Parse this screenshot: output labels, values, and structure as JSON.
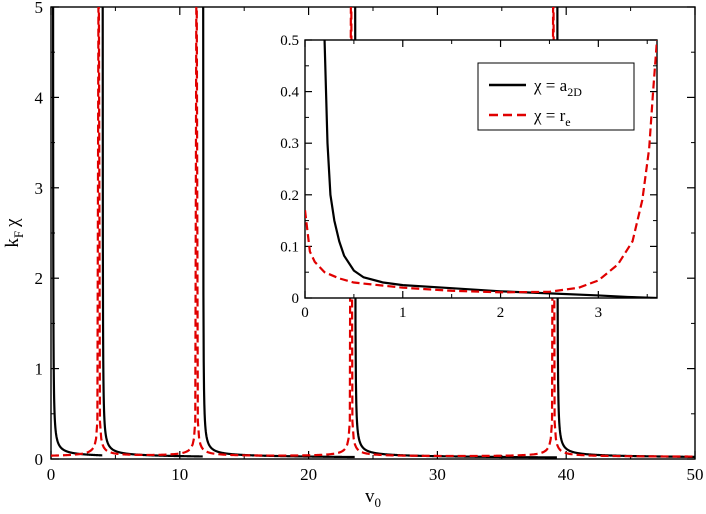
{
  "chart_data": [
    {
      "type": "line",
      "xlabel": "v0",
      "xlabel_main": "v",
      "xlabel_sub": "0",
      "ylabel": "kF χ",
      "ylabel_k": "k",
      "ylabel_sub": "F",
      "ylabel_chi": "χ",
      "xlim": [
        0,
        50
      ],
      "ylim": [
        0,
        5
      ],
      "x_ticks": [
        0,
        10,
        20,
        30,
        40,
        50
      ],
      "y_ticks": [
        0,
        1,
        2,
        3,
        4,
        5
      ],
      "grid": false,
      "series": [
        {
          "name": "χ = a2D",
          "color": "#000000",
          "dash": "solid",
          "resonances": [
            0.15,
            4.0,
            11.8,
            23.6,
            39.3
          ],
          "tail": 0.03
        },
        {
          "name": "χ = re",
          "color": "#e00000",
          "dash": "dashed",
          "resonances": [
            3.7,
            11.3,
            23.3,
            39.0
          ],
          "tail": 0.02
        }
      ]
    },
    {
      "type": "line",
      "location": "inset",
      "xlim": [
        0,
        3.6
      ],
      "ylim": [
        0,
        0.5
      ],
      "x_ticks": [
        0,
        1,
        2,
        3
      ],
      "y_ticks": [
        0,
        0.1,
        0.2,
        0.3,
        0.4,
        0.5
      ],
      "y_tick_labels": [
        "0",
        "0.1",
        "0.2",
        "0.3",
        "0.4",
        "0.5"
      ],
      "legend_position": "top-right",
      "legend": [
        {
          "lhs": "χ = a",
          "sub": "2D",
          "color": "#000000",
          "dash": "solid"
        },
        {
          "lhs": "χ = r",
          "sub": "e",
          "color": "#e00000",
          "dash": "dashed"
        }
      ],
      "series": [
        {
          "name": "χ = a2D",
          "color": "#000000",
          "x": [
            0.2,
            0.23,
            0.26,
            0.3,
            0.35,
            0.4,
            0.5,
            0.6,
            0.8,
            1.0,
            1.5,
            2.0,
            2.5,
            3.0,
            3.3,
            3.6
          ],
          "y": [
            0.5,
            0.3,
            0.2,
            0.15,
            0.11,
            0.082,
            0.053,
            0.04,
            0.03,
            0.025,
            0.019,
            0.013,
            0.009,
            0.005,
            0.002,
            0.0
          ]
        },
        {
          "name": "χ = re",
          "color": "#e00000",
          "x": [
            0.0,
            0.05,
            0.1,
            0.2,
            0.35,
            0.5,
            0.8,
            1.0,
            1.5,
            2.0,
            2.5,
            2.8,
            3.0,
            3.2,
            3.35,
            3.45,
            3.52,
            3.56,
            3.6
          ],
          "y": [
            0.17,
            0.09,
            0.07,
            0.05,
            0.038,
            0.03,
            0.024,
            0.02,
            0.014,
            0.011,
            0.012,
            0.02,
            0.034,
            0.065,
            0.11,
            0.19,
            0.29,
            0.4,
            0.5
          ]
        }
      ]
    }
  ]
}
